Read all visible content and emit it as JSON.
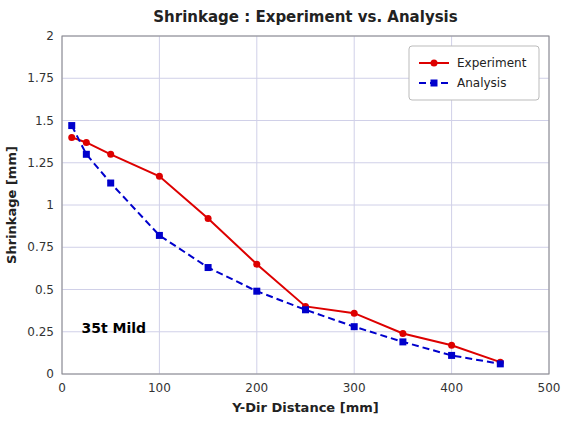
{
  "chart_data": {
    "type": "line",
    "title": "Shrinkage : Experiment vs. Analysis",
    "x_label": "Y-Dir Distance [mm]",
    "y_label": "Shrinkage [mm]",
    "annotation": "35t Mild",
    "x": [
      10,
      25,
      50,
      100,
      150,
      200,
      250,
      300,
      350,
      400,
      450
    ],
    "series": [
      {
        "name": "Experiment",
        "color": "#dd0000",
        "marker": "circle",
        "line_style": "solid",
        "values": [
          1.4,
          1.37,
          1.3,
          1.17,
          0.92,
          0.65,
          0.4,
          0.36,
          0.24,
          0.17,
          0.07
        ]
      },
      {
        "name": "Analysis",
        "color": "#0000cc",
        "marker": "square",
        "line_style": "dashed",
        "values": [
          1.47,
          1.3,
          1.13,
          0.82,
          0.63,
          0.49,
          0.38,
          0.28,
          0.19,
          0.11,
          0.06
        ]
      }
    ],
    "xlim": [
      0,
      500
    ],
    "ylim": [
      0,
      2
    ],
    "xticks": [
      0,
      100,
      200,
      300,
      400,
      500
    ],
    "yticks": [
      0,
      0.25,
      0.5,
      0.75,
      1,
      1.25,
      1.5,
      1.75,
      2
    ],
    "grid": true,
    "legend": "upper right"
  }
}
